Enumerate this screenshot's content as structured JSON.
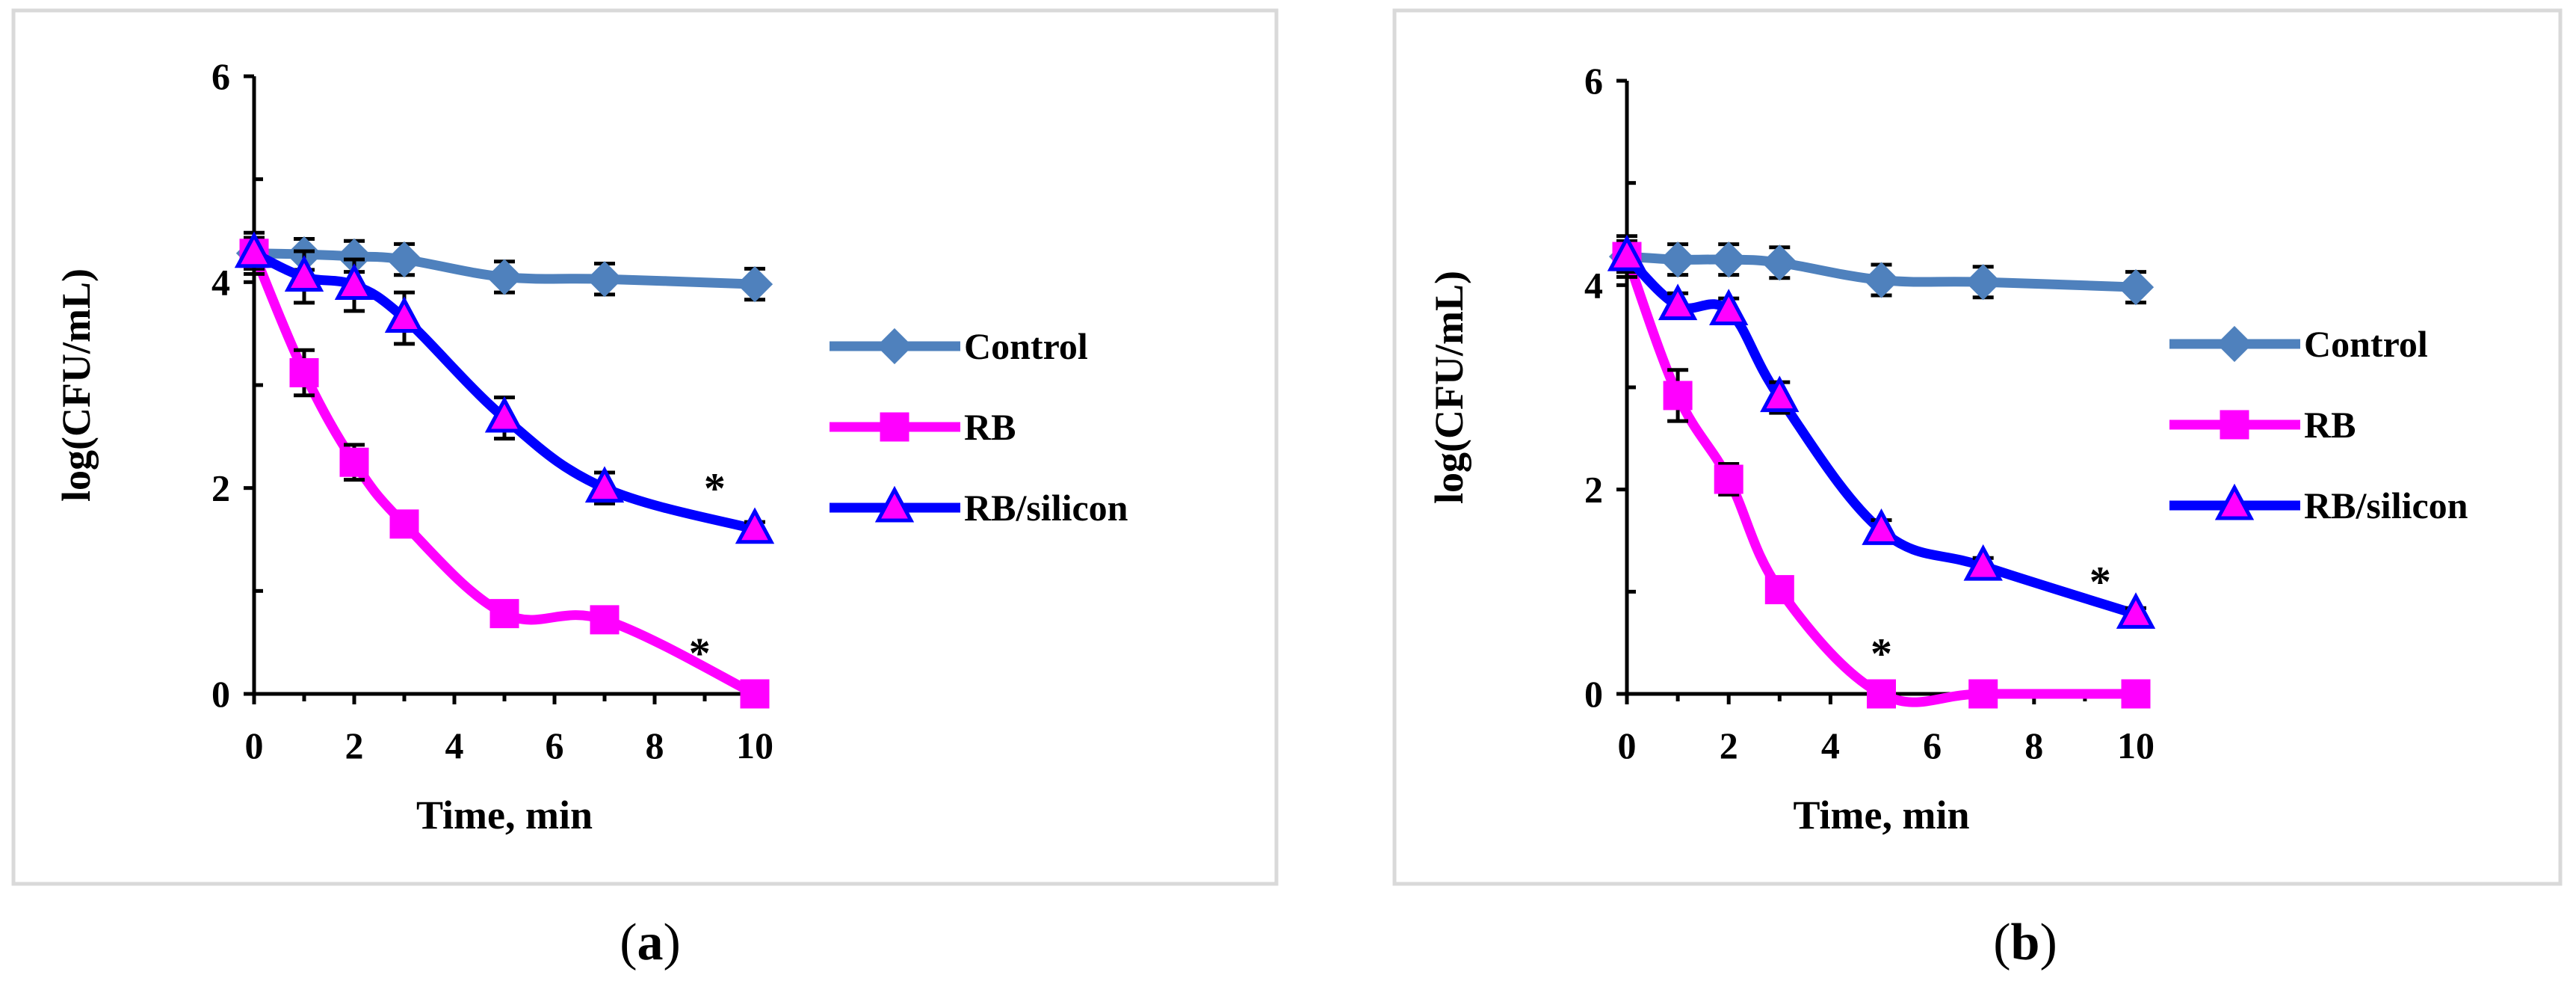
{
  "figure": {
    "panels": [
      {
        "caption_open": "(",
        "caption_letter": "a",
        "caption_close": ")"
      },
      {
        "caption_open": "(",
        "caption_letter": "b",
        "caption_close": ")"
      }
    ]
  },
  "chart_data": [
    {
      "type": "line",
      "title": "",
      "xlabel": "Time, min",
      "ylabel": "log(CFU/mL)",
      "xlim": [
        0,
        10
      ],
      "ylim": [
        0,
        6
      ],
      "xticks": [
        0,
        2,
        4,
        6,
        8,
        10
      ],
      "yticks": [
        0,
        2,
        4,
        6
      ],
      "legend_position": "right",
      "series": [
        {
          "name": "Control",
          "color": "#4f81bd",
          "marker": "diamond",
          "x": [
            0,
            1,
            2,
            3,
            5,
            7,
            10
          ],
          "values": [
            4.28,
            4.27,
            4.25,
            4.22,
            4.05,
            4.03,
            3.98
          ],
          "errors": [
            0.15,
            0.15,
            0.15,
            0.15,
            0.15,
            0.15,
            0.15
          ]
        },
        {
          "name": "RB",
          "color": "#ff00ff",
          "marker": "square",
          "x": [
            0,
            1,
            2,
            3,
            5,
            7,
            10
          ],
          "values": [
            4.28,
            3.12,
            2.25,
            1.65,
            0.78,
            0.72,
            0.0
          ],
          "errors": [
            0.15,
            0.22,
            0.17,
            0.12,
            0.08,
            0.08,
            0.0
          ]
        },
        {
          "name": "RB/silicon",
          "color": "#0000ff",
          "marker": "triangle",
          "x": [
            0,
            1,
            2,
            3,
            5,
            7,
            10
          ],
          "values": [
            4.28,
            4.05,
            3.97,
            3.65,
            2.68,
            2.0,
            1.6
          ],
          "errors": [
            0.2,
            0.25,
            0.25,
            0.25,
            0.2,
            0.15,
            0.07
          ]
        }
      ],
      "annotations": [
        {
          "text": "*",
          "x": 9.2,
          "y": 2.0
        },
        {
          "text": "*",
          "x": 8.9,
          "y": 0.4
        }
      ]
    },
    {
      "type": "line",
      "title": "",
      "xlabel": "Time, min",
      "ylabel": "log(CFU/mL)",
      "xlim": [
        0,
        10
      ],
      "ylim": [
        0,
        6
      ],
      "xticks": [
        0,
        2,
        4,
        6,
        8,
        10
      ],
      "yticks": [
        0,
        2,
        4,
        6
      ],
      "legend_position": "right",
      "series": [
        {
          "name": "Control",
          "color": "#4f81bd",
          "marker": "diamond",
          "x": [
            0,
            1,
            2,
            3,
            5,
            7,
            10
          ],
          "values": [
            4.28,
            4.25,
            4.25,
            4.22,
            4.05,
            4.03,
            3.98
          ],
          "errors": [
            0.15,
            0.15,
            0.15,
            0.15,
            0.15,
            0.15,
            0.15
          ]
        },
        {
          "name": "RB",
          "color": "#ff00ff",
          "marker": "square",
          "x": [
            0,
            1,
            2,
            3,
            5,
            7,
            10
          ],
          "values": [
            4.28,
            2.92,
            2.1,
            1.02,
            0.0,
            0.0,
            0.0
          ],
          "errors": [
            0.15,
            0.25,
            0.15,
            0.1,
            0.0,
            0.0,
            0.0
          ]
        },
        {
          "name": "RB/silicon",
          "color": "#0000ff",
          "marker": "triangle",
          "x": [
            0,
            1,
            2,
            3,
            5,
            7,
            10
          ],
          "values": [
            4.28,
            3.8,
            3.75,
            2.9,
            1.6,
            1.25,
            0.78
          ],
          "errors": [
            0.2,
            0.12,
            0.12,
            0.15,
            0.1,
            0.08,
            0.06
          ]
        }
      ],
      "annotations": [
        {
          "text": "*",
          "x": 9.3,
          "y": 1.1
        },
        {
          "text": "*",
          "x": 5.0,
          "y": 0.4
        }
      ]
    }
  ]
}
